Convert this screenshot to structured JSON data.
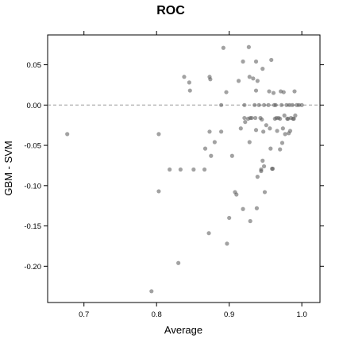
{
  "chart_data": {
    "type": "scatter",
    "title": "ROC",
    "xlabel": "Average",
    "ylabel": "GBM - SVM",
    "xlim": [
      0.65,
      1.025
    ],
    "ylim": [
      -0.245,
      0.087
    ],
    "x_ticks": [
      0.7,
      0.8,
      0.9,
      1.0
    ],
    "x_tick_labels": [
      "0.7",
      "0.8",
      "0.9",
      "1.0"
    ],
    "y_ticks": [
      -0.2,
      -0.15,
      -0.1,
      -0.05,
      0.0,
      0.05
    ],
    "y_tick_labels": [
      "-0.20",
      "-0.15",
      "-0.10",
      "-0.05",
      "0.00",
      "0.05"
    ],
    "reference_line": 0,
    "grid": false,
    "point_color": "#555555",
    "series": [
      {
        "points": [
          {
            "x": 0.677,
            "y": -0.036
          },
          {
            "x": 0.793,
            "y": -0.231
          },
          {
            "x": 0.803,
            "y": -0.036
          },
          {
            "x": 0.803,
            "y": -0.107
          },
          {
            "x": 0.818,
            "y": -0.08
          },
          {
            "x": 0.83,
            "y": -0.196
          },
          {
            "x": 0.833,
            "y": -0.08
          },
          {
            "x": 0.838,
            "y": 0.035
          },
          {
            "x": 0.845,
            "y": 0.028
          },
          {
            "x": 0.846,
            "y": 0.018
          },
          {
            "x": 0.851,
            "y": -0.08
          },
          {
            "x": 0.866,
            "y": -0.08
          },
          {
            "x": 0.867,
            "y": -0.054
          },
          {
            "x": 0.872,
            "y": -0.159
          },
          {
            "x": 0.873,
            "y": 0.035
          },
          {
            "x": 0.874,
            "y": 0.032
          },
          {
            "x": 0.875,
            "y": -0.063
          },
          {
            "x": 0.873,
            "y": -0.033
          },
          {
            "x": 0.88,
            "y": -0.046
          },
          {
            "x": 0.889,
            "y": 0.0
          },
          {
            "x": 0.889,
            "y": -0.033
          },
          {
            "x": 0.892,
            "y": 0.071
          },
          {
            "x": 0.896,
            "y": 0.016
          },
          {
            "x": 0.897,
            "y": -0.172
          },
          {
            "x": 0.9,
            "y": -0.14
          },
          {
            "x": 0.904,
            "y": -0.063
          },
          {
            "x": 0.908,
            "y": -0.108
          },
          {
            "x": 0.91,
            "y": -0.111
          },
          {
            "x": 0.913,
            "y": 0.03
          },
          {
            "x": 0.916,
            "y": -0.029
          },
          {
            "x": 0.919,
            "y": 0.054
          },
          {
            "x": 0.919,
            "y": -0.129
          },
          {
            "x": 0.921,
            "y": 0.0
          },
          {
            "x": 0.921,
            "y": -0.016
          },
          {
            "x": 0.922,
            "y": -0.021
          },
          {
            "x": 0.926,
            "y": -0.017
          },
          {
            "x": 0.927,
            "y": 0.072
          },
          {
            "x": 0.928,
            "y": 0.035
          },
          {
            "x": 0.928,
            "y": -0.046
          },
          {
            "x": 0.929,
            "y": -0.016
          },
          {
            "x": 0.929,
            "y": -0.144
          },
          {
            "x": 0.931,
            "y": -0.016
          },
          {
            "x": 0.933,
            "y": 0.033
          },
          {
            "x": 0.935,
            "y": 0.0
          },
          {
            "x": 0.936,
            "y": -0.016
          },
          {
            "x": 0.937,
            "y": 0.054
          },
          {
            "x": 0.937,
            "y": 0.018
          },
          {
            "x": 0.937,
            "y": -0.031
          },
          {
            "x": 0.938,
            "y": -0.128
          },
          {
            "x": 0.939,
            "y": -0.089
          },
          {
            "x": 0.939,
            "y": 0.03
          },
          {
            "x": 0.941,
            "y": 0.0
          },
          {
            "x": 0.943,
            "y": -0.016
          },
          {
            "x": 0.944,
            "y": -0.08
          },
          {
            "x": 0.944,
            "y": -0.082
          },
          {
            "x": 0.945,
            "y": -0.018
          },
          {
            "x": 0.946,
            "y": 0.045
          },
          {
            "x": 0.946,
            "y": -0.069
          },
          {
            "x": 0.947,
            "y": -0.033
          },
          {
            "x": 0.948,
            "y": 0.0
          },
          {
            "x": 0.948,
            "y": -0.076
          },
          {
            "x": 0.949,
            "y": -0.108
          },
          {
            "x": 0.951,
            "y": -0.025
          },
          {
            "x": 0.954,
            "y": 0.0
          },
          {
            "x": 0.955,
            "y": 0.017
          },
          {
            "x": 0.956,
            "y": -0.029
          },
          {
            "x": 0.957,
            "y": -0.054
          },
          {
            "x": 0.958,
            "y": 0.056
          },
          {
            "x": 0.959,
            "y": -0.079
          },
          {
            "x": 0.96,
            "y": -0.079
          },
          {
            "x": 0.961,
            "y": 0.015
          },
          {
            "x": 0.962,
            "y": 0.0
          },
          {
            "x": 0.963,
            "y": -0.017
          },
          {
            "x": 0.964,
            "y": 0.0
          },
          {
            "x": 0.965,
            "y": -0.016
          },
          {
            "x": 0.966,
            "y": -0.032
          },
          {
            "x": 0.968,
            "y": -0.016
          },
          {
            "x": 0.97,
            "y": -0.017
          },
          {
            "x": 0.97,
            "y": -0.055
          },
          {
            "x": 0.971,
            "y": 0.017
          },
          {
            "x": 0.972,
            "y": 0.0
          },
          {
            "x": 0.973,
            "y": -0.047
          },
          {
            "x": 0.974,
            "y": -0.029
          },
          {
            "x": 0.975,
            "y": 0.016
          },
          {
            "x": 0.976,
            "y": -0.013
          },
          {
            "x": 0.977,
            "y": -0.036
          },
          {
            "x": 0.979,
            "y": 0.0
          },
          {
            "x": 0.98,
            "y": -0.017
          },
          {
            "x": 0.981,
            "y": -0.017
          },
          {
            "x": 0.982,
            "y": -0.035
          },
          {
            "x": 0.983,
            "y": 0.0
          },
          {
            "x": 0.984,
            "y": -0.032
          },
          {
            "x": 0.985,
            "y": -0.016
          },
          {
            "x": 0.987,
            "y": 0.0
          },
          {
            "x": 0.988,
            "y": -0.017
          },
          {
            "x": 0.989,
            "y": -0.017
          },
          {
            "x": 0.99,
            "y": 0.017
          },
          {
            "x": 0.991,
            "y": -0.013
          },
          {
            "x": 0.993,
            "y": 0.0
          },
          {
            "x": 0.996,
            "y": 0.0
          },
          {
            "x": 1.0,
            "y": 0.0
          }
        ]
      }
    ]
  }
}
